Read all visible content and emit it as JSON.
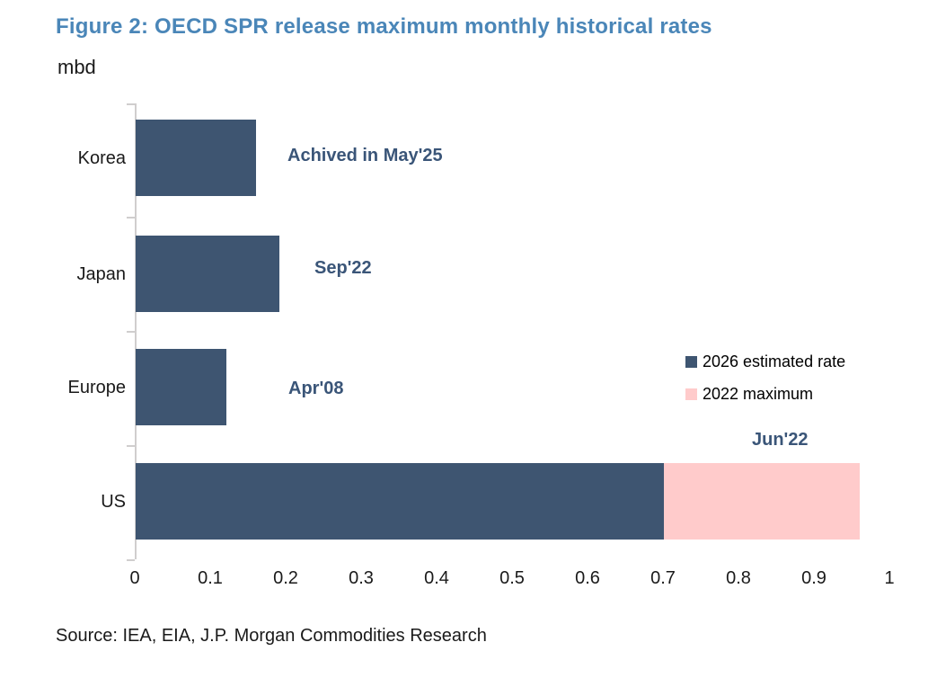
{
  "title": "Figure 2: OECD SPR release maximum monthly historical rates",
  "unit_label": "mbd",
  "source": "Source: IEA, EIA, J.P. Morgan Commodities Research",
  "colors": {
    "title": "#4a86b8",
    "bar_primary": "#3e5571",
    "bar_secondary": "#ffcbcb",
    "annotation_text": "#3a5578",
    "axis": "#d0cece",
    "text": "#1a1a1a"
  },
  "legend": {
    "items": [
      {
        "label": "2026 estimated rate",
        "color": "#3e5571"
      },
      {
        "label": "2022 maximum",
        "color": "#ffcbcb"
      }
    ],
    "position": "right-middle"
  },
  "chart_data": {
    "type": "bar",
    "orientation": "horizontal",
    "title": "Figure 2: OECD SPR release maximum monthly historical rates",
    "ylabel": "mbd",
    "xlabel": "",
    "categories": [
      "Korea",
      "Japan",
      "Europe",
      "US"
    ],
    "series": [
      {
        "name": "2026 estimated rate",
        "color": "#3e5571",
        "values": [
          0.16,
          0.19,
          0.12,
          0.7
        ]
      },
      {
        "name": "2022 maximum",
        "color": "#ffcbcb",
        "values": [
          null,
          null,
          null,
          0.96
        ],
        "note": "drawn stacked beyond the 2026 estimated rate segment for US only"
      }
    ],
    "annotations": [
      {
        "category": "Korea",
        "text": "Achived in May'25"
      },
      {
        "category": "Japan",
        "text": "Sep'22"
      },
      {
        "category": "Europe",
        "text": "Apr'08"
      },
      {
        "category": "US",
        "text": "Jun'22"
      }
    ],
    "xlim": [
      0,
      1
    ],
    "xticks": [
      "0",
      "0.1",
      "0.2",
      "0.3",
      "0.4",
      "0.5",
      "0.6",
      "0.7",
      "0.8",
      "0.9",
      "1"
    ],
    "grid": false,
    "legend_position": "right-middle"
  }
}
